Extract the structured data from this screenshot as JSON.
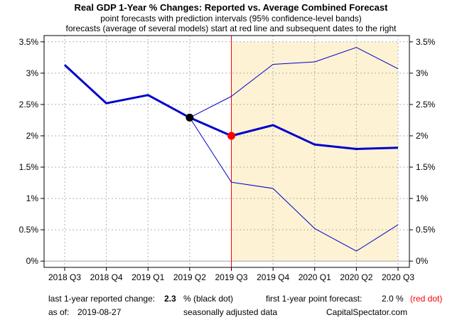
{
  "chart_data": {
    "type": "line",
    "title": "Real GDP 1-Year % Changes: Reported vs. Average Combined Forecast",
    "subtitle_lines": [
      "point forecasts with prediction intervals (95% confidence-level bands)",
      "forecasts (average of several models) start at red line and subsequent dates to the right"
    ],
    "categories": [
      "2018 Q3",
      "2018 Q4",
      "2019 Q1",
      "2019 Q2",
      "2019 Q3",
      "2019 Q4",
      "2020 Q1",
      "2020 Q2",
      "2020 Q3"
    ],
    "y_ticks": [
      "0%",
      "0.5%",
      "1%",
      "1.5%",
      "2%",
      "2.5%",
      "3%",
      "3.5%"
    ],
    "y_tick_values": [
      0,
      0.5,
      1,
      1.5,
      2,
      2.5,
      3,
      3.5
    ],
    "ylim": [
      -0.1,
      3.6
    ],
    "grid": true,
    "forecast_start_category": "2019 Q3",
    "series": [
      {
        "role": "reported",
        "values": [
          3.13,
          2.52,
          2.65,
          2.29,
          null,
          null,
          null,
          null,
          null
        ]
      },
      {
        "role": "point_forecast",
        "values": [
          null,
          null,
          null,
          2.29,
          2.0,
          2.17,
          1.86,
          1.79,
          1.81
        ]
      },
      {
        "role": "upper_band",
        "values": [
          null,
          null,
          null,
          2.29,
          2.63,
          3.14,
          3.18,
          3.41,
          3.07
        ]
      },
      {
        "role": "lower_band",
        "values": [
          null,
          null,
          null,
          2.29,
          1.26,
          1.16,
          0.52,
          0.16,
          0.58
        ]
      }
    ],
    "markers": [
      {
        "category": "2019 Q2",
        "value": 2.29,
        "color": "#000000"
      },
      {
        "category": "2019 Q3",
        "value": 2.0,
        "color": "#ff0000"
      }
    ],
    "colors": {
      "line": "#0000cc",
      "forecast_line": "#ff0000",
      "band_fill": "#fdf2d3",
      "zero_line": "#bfbfbf"
    }
  },
  "footer": {
    "reported_label": "last 1-year reported change:",
    "reported_value": "2.3",
    "reported_unit": "% (black dot)",
    "forecast_label": "first 1-year point forecast:",
    "forecast_value": "2.0 %",
    "forecast_note": "(red dot)",
    "asof_label": "as of:",
    "asof_value": "2019-08-27",
    "adjusted": "seasonally adjusted data",
    "source": "CapitalSpectator.com"
  }
}
